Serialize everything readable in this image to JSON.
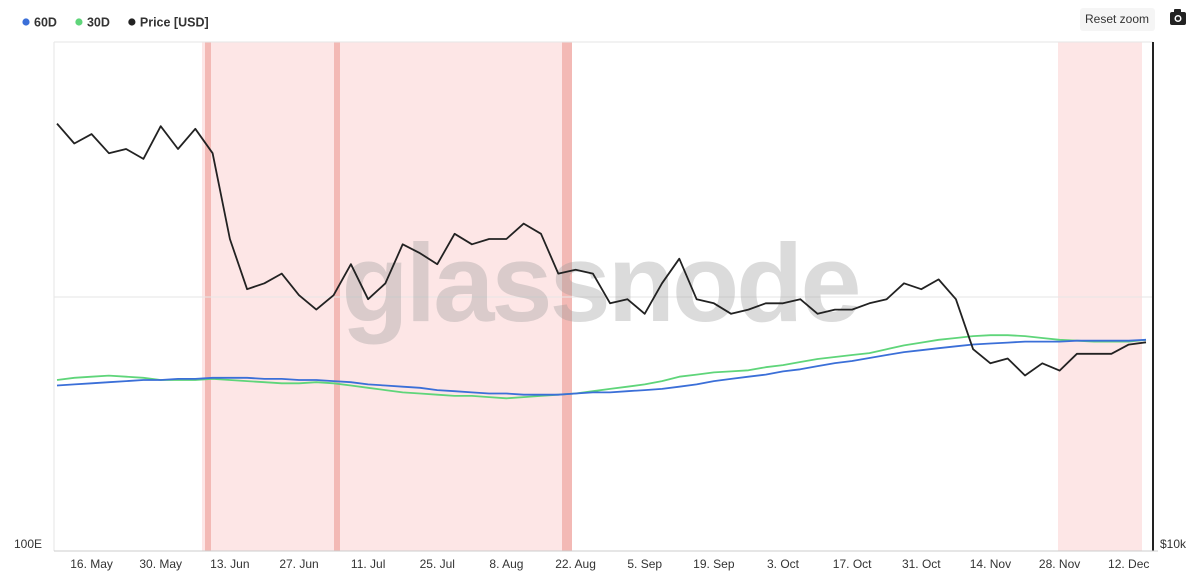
{
  "toolbar": {
    "reset_zoom": "Reset zoom"
  },
  "chart_data": {
    "type": "line",
    "watermark": "glassnode",
    "legend": "top-left",
    "log_scale": true,
    "grid": true,
    "categories": [
      null,
      null,
      "16. May",
      null,
      null,
      null,
      "30. May",
      null,
      null,
      null,
      "13. Jun",
      null,
      null,
      null,
      "27. Jun",
      null,
      null,
      null,
      "11. Jul",
      null,
      null,
      null,
      "25. Jul",
      null,
      null,
      null,
      "8. Aug",
      null,
      null,
      null,
      "22. Aug",
      null,
      null,
      null,
      "5. Sep",
      null,
      null,
      null,
      "19. Sep",
      null,
      null,
      null,
      "3. Oct",
      null,
      null,
      null,
      "17. Oct",
      null,
      null,
      null,
      "31. Oct",
      null,
      null,
      null,
      "14. Nov",
      null,
      null,
      null,
      "28. Nov",
      null,
      null,
      null,
      "12. Dec",
      null
    ],
    "series": [
      {
        "name": "60D",
        "color": "#3b6fd8",
        "axis": "y",
        "values": [
          2.05e+20,
          2.06e+20,
          2.07e+20,
          2.08e+20,
          2.09e+20,
          2.1e+20,
          2.1e+20,
          2.11e+20,
          2.11e+20,
          2.12e+20,
          2.12e+20,
          2.12e+20,
          2.11e+20,
          2.11e+20,
          2.1e+20,
          2.1e+20,
          2.09e+20,
          2.08e+20,
          2.06e+20,
          2.05e+20,
          2.04e+20,
          2.03e+20,
          2.01e+20,
          2e+20,
          1.99e+20,
          1.98e+20,
          1.98e+20,
          1.97e+20,
          1.97e+20,
          1.97e+20,
          1.98e+20,
          1.99e+20,
          1.99e+20,
          2e+20,
          2.01e+20,
          2.02e+20,
          2.04e+20,
          2.06e+20,
          2.09e+20,
          2.11e+20,
          2.13e+20,
          2.15e+20,
          2.18e+20,
          2.2e+20,
          2.23e+20,
          2.26e+20,
          2.28e+20,
          2.31e+20,
          2.34e+20,
          2.37e+20,
          2.39e+20,
          2.41e+20,
          2.43e+20,
          2.45e+20,
          2.46e+20,
          2.47e+20,
          2.48e+20,
          2.48e+20,
          2.48e+20,
          2.49e+20,
          2.49e+20,
          2.49e+20,
          2.49e+20,
          2.5e+20
        ]
      },
      {
        "name": "30D",
        "color": "#5fd57a",
        "axis": "y",
        "values": [
          2.1e+20,
          2.12e+20,
          2.13e+20,
          2.14e+20,
          2.13e+20,
          2.12e+20,
          2.1e+20,
          2.1e+20,
          2.1e+20,
          2.11e+20,
          2.1e+20,
          2.09e+20,
          2.08e+20,
          2.07e+20,
          2.07e+20,
          2.08e+20,
          2.07e+20,
          2.05e+20,
          2.03e+20,
          2.01e+20,
          1.99e+20,
          1.98e+20,
          1.97e+20,
          1.96e+20,
          1.96e+20,
          1.95e+20,
          1.94e+20,
          1.95e+20,
          1.96e+20,
          1.97e+20,
          1.98e+20,
          2e+20,
          2.02e+20,
          2.04e+20,
          2.06e+20,
          2.09e+20,
          2.13e+20,
          2.15e+20,
          2.17e+20,
          2.18e+20,
          2.19e+20,
          2.22e+20,
          2.24e+20,
          2.27e+20,
          2.3e+20,
          2.32e+20,
          2.34e+20,
          2.36e+20,
          2.4e+20,
          2.44e+20,
          2.47e+20,
          2.5e+20,
          2.52e+20,
          2.54e+20,
          2.55e+20,
          2.55e+20,
          2.54e+20,
          2.52e+20,
          2.5e+20,
          2.49e+20,
          2.48e+20,
          2.48e+20,
          2.48e+20,
          2.5e+20
        ]
      },
      {
        "name": "Price [USD]",
        "color": "#222222",
        "axis": "y2",
        "values": [
          30000,
          28500,
          29200,
          27800,
          28100,
          27400,
          29800,
          28100,
          29600,
          27800,
          22300,
          19600,
          19900,
          20400,
          19300,
          18600,
          19300,
          20900,
          19100,
          19900,
          22000,
          21500,
          20900,
          22600,
          22000,
          22300,
          22300,
          23200,
          22600,
          20400,
          20600,
          20400,
          18900,
          19100,
          18400,
          19900,
          21200,
          19100,
          18900,
          18400,
          18600,
          18900,
          18900,
          19100,
          18400,
          18600,
          18600,
          18900,
          19100,
          19900,
          19600,
          20100,
          19100,
          16800,
          16200,
          16400,
          15700,
          16200,
          15900,
          16600,
          16600,
          16600,
          17000,
          17100
        ]
      }
    ],
    "ylim": [
      1e+20,
      9.1e+20
    ],
    "yticks": [
      {
        "value": 1e+20,
        "label": "100E"
      }
    ],
    "y2lim": [
      10000,
      37000
    ],
    "y2ticks": [
      {
        "value": 10000,
        "label": "$10k"
      }
    ]
  }
}
